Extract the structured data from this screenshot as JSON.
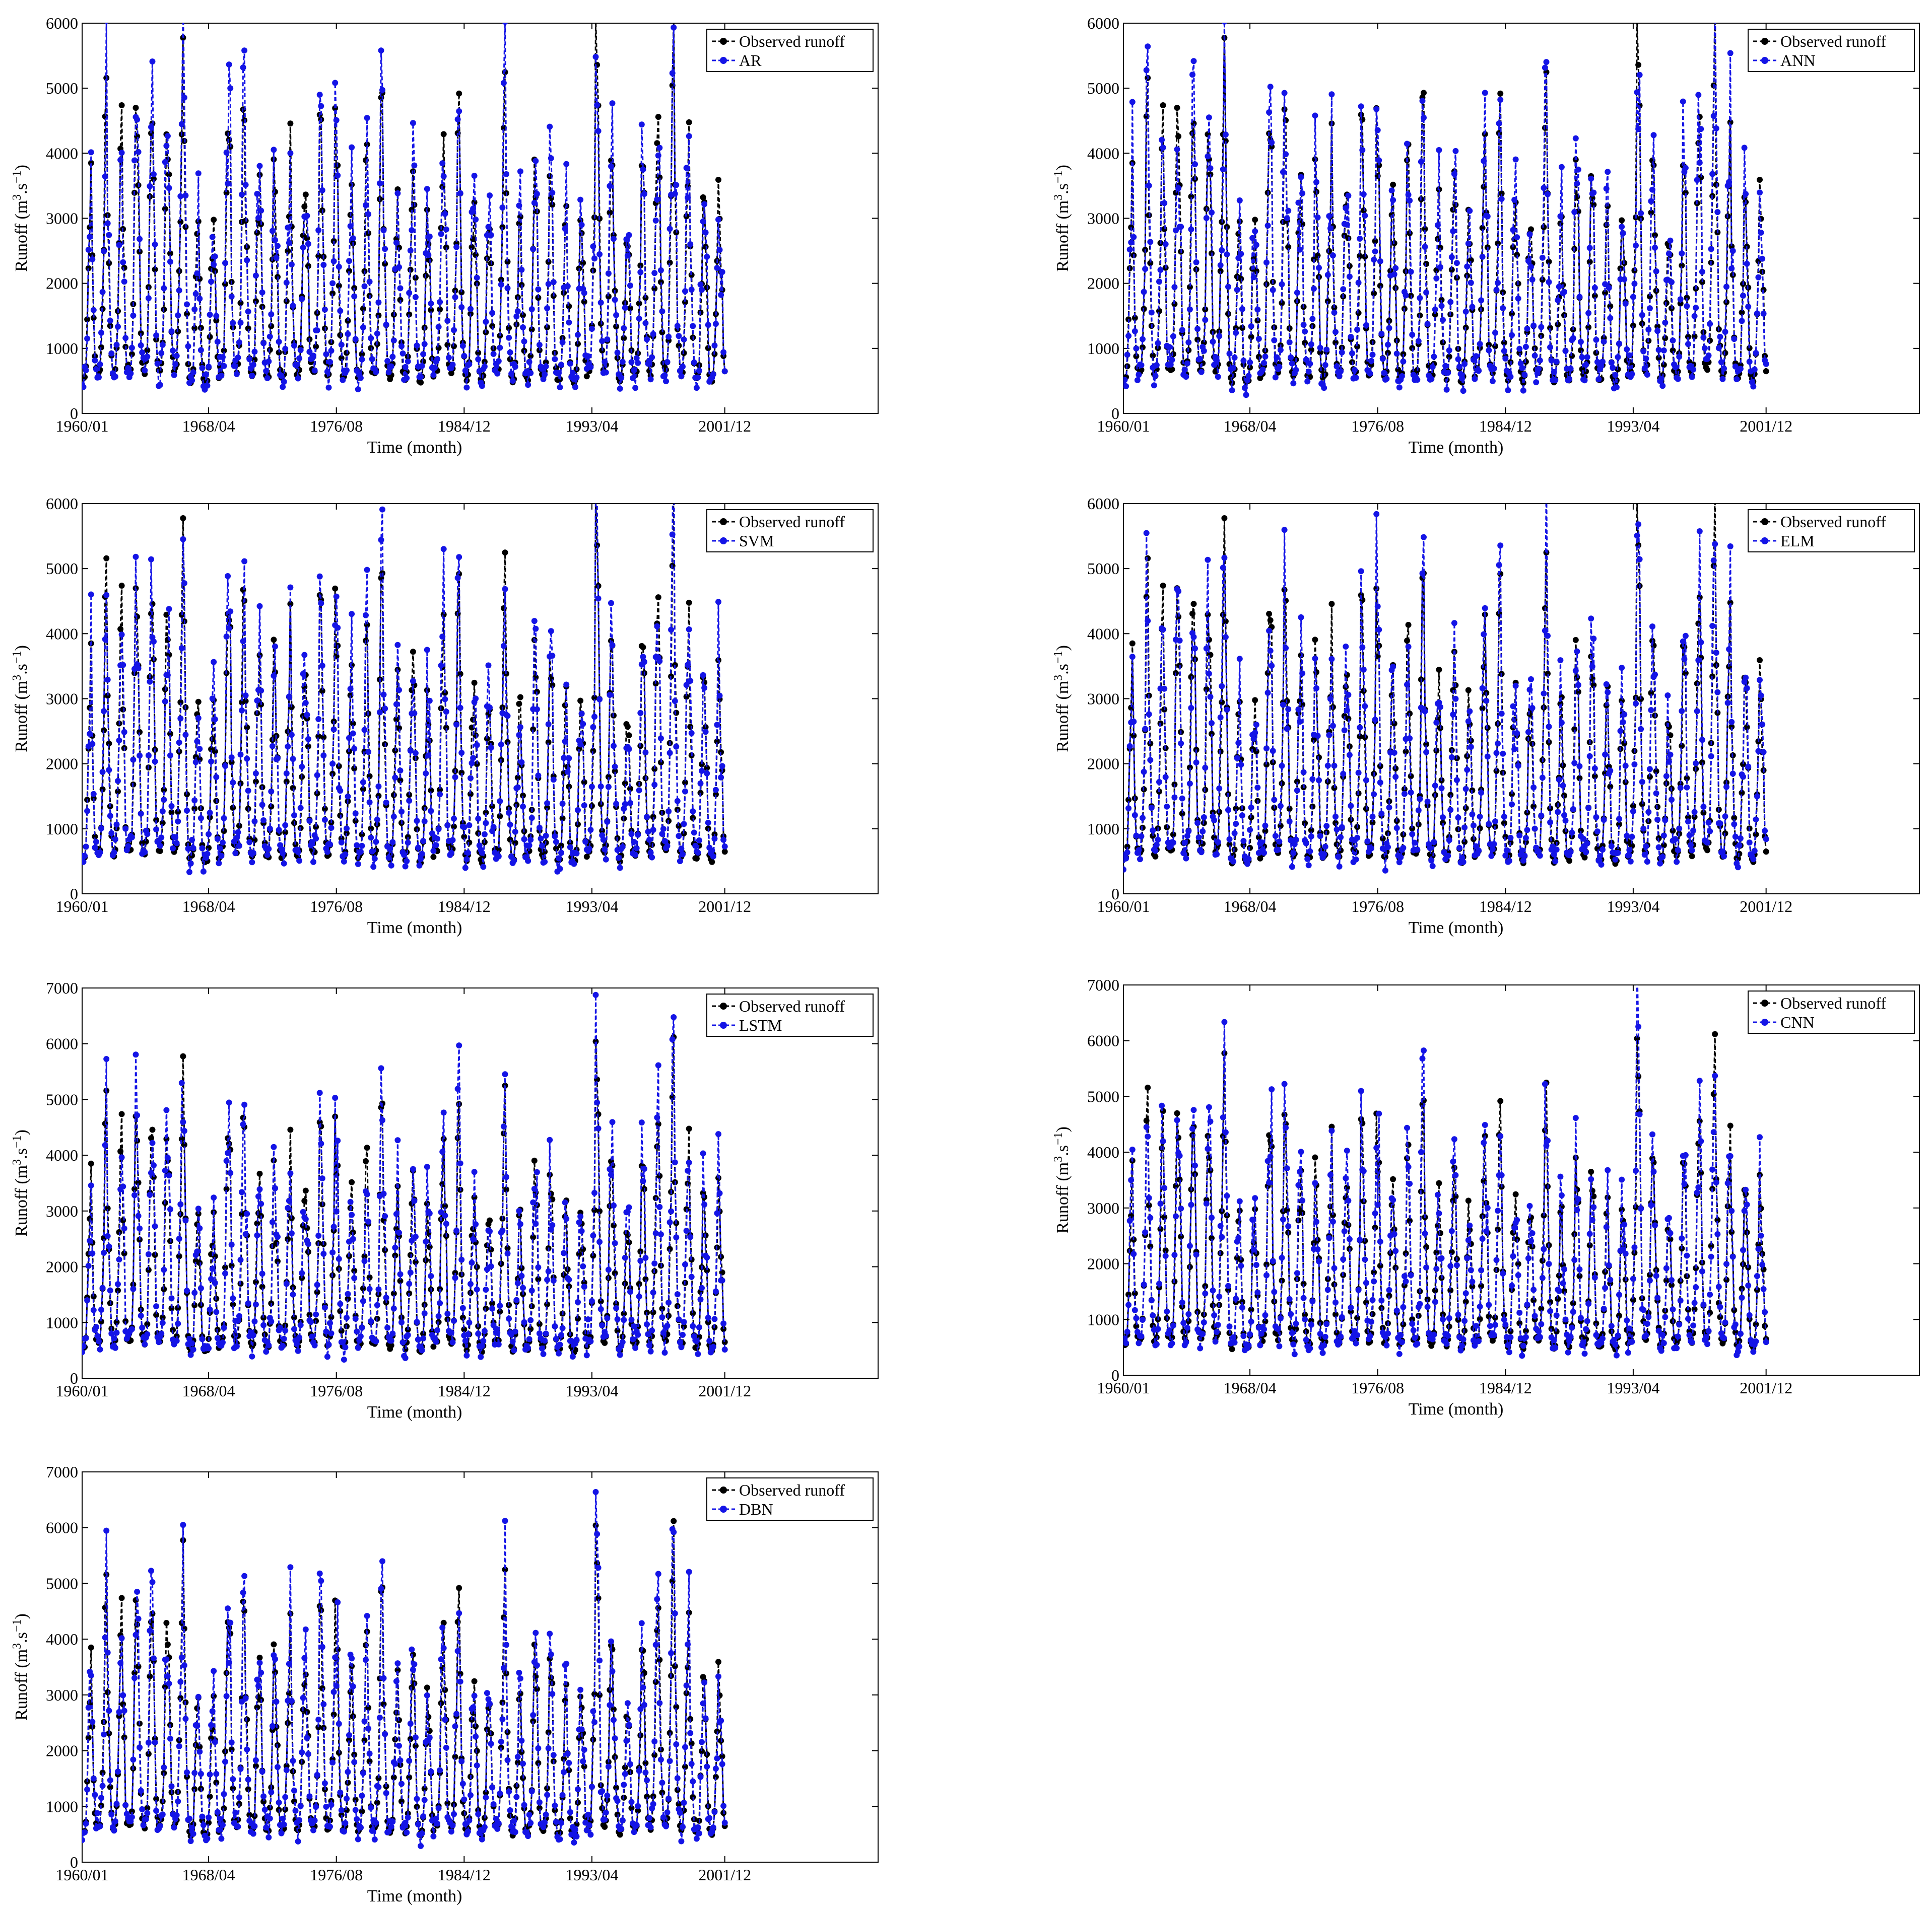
{
  "figure": {
    "panels": 7,
    "layout": "4 rows x 2 columns, last row single panel on the left",
    "colors": {
      "observed": "#000000",
      "model": "#1414e6",
      "axes": "#000000",
      "background": "#ffffff"
    },
    "line_style": "dashed with filled circle markers"
  },
  "chart_data": [
    {
      "type": "line",
      "xlabel": "Time (month)",
      "ylabel": "Runoff (m3.s-1)",
      "ylabel_text": "Runoff (m",
      "ylabel_unit_tail": ".s",
      "ylabel_exp1": "3",
      "ylabel_exp2": "−1",
      "ylabel_close": ")",
      "ylim": [
        0,
        6000
      ],
      "yticks": [
        "0",
        "1000",
        "2000",
        "3000",
        "4000",
        "5000",
        "6000"
      ],
      "xlim": [
        "1960/01",
        "2011/12"
      ],
      "xticks": [
        "1960/01",
        "1968/04",
        "1976/08",
        "1984/12",
        "1993/04",
        "2001/12"
      ],
      "legend_position": "top-right",
      "grid": false,
      "series": [
        {
          "name": "Observed runoff",
          "color": "#000000",
          "seed": 7
        },
        {
          "name": "AR",
          "color": "#1414e6",
          "seed": 11
        }
      ]
    },
    {
      "type": "line",
      "xlabel": "Time (month)",
      "ylabel": "Runoff (m3.s-1)",
      "ylabel_text": "Runoff (m",
      "ylabel_unit_tail": ".s",
      "ylabel_exp1": "3",
      "ylabel_exp2": "−1",
      "ylabel_close": ")",
      "ylim": [
        0,
        6000
      ],
      "yticks": [
        "0",
        "1000",
        "2000",
        "3000",
        "4000",
        "5000",
        "6000"
      ],
      "xlim": [
        "1960/01",
        "2011/12"
      ],
      "xticks": [
        "1960/01",
        "1968/04",
        "1976/08",
        "1984/12",
        "1993/04",
        "2001/12"
      ],
      "legend_position": "top-right",
      "grid": false,
      "series": [
        {
          "name": "Observed runoff",
          "color": "#000000",
          "seed": 7
        },
        {
          "name": "ANN",
          "color": "#1414e6",
          "seed": 13
        }
      ]
    },
    {
      "type": "line",
      "xlabel": "Time (month)",
      "ylabel": "Runoff (m3.s-1)",
      "ylabel_text": "Runoff (m",
      "ylabel_unit_tail": ".s",
      "ylabel_exp1": "3",
      "ylabel_exp2": "−1",
      "ylabel_close": ")",
      "ylim": [
        0,
        6000
      ],
      "yticks": [
        "0",
        "1000",
        "2000",
        "3000",
        "4000",
        "5000",
        "6000"
      ],
      "xlim": [
        "1960/01",
        "2011/12"
      ],
      "xticks": [
        "1960/01",
        "1968/04",
        "1976/08",
        "1984/12",
        "1993/04",
        "2001/12"
      ],
      "legend_position": "top-right",
      "grid": false,
      "series": [
        {
          "name": "Observed runoff",
          "color": "#000000",
          "seed": 7
        },
        {
          "name": "SVM",
          "color": "#1414e6",
          "seed": 17
        }
      ]
    },
    {
      "type": "line",
      "xlabel": "Time (month)",
      "ylabel": "Runoff (m3.s-1)",
      "ylabel_text": "Runoff (m",
      "ylabel_unit_tail": ".s",
      "ylabel_exp1": "3",
      "ylabel_exp2": "−1",
      "ylabel_close": ")",
      "ylim": [
        0,
        6000
      ],
      "yticks": [
        "0",
        "1000",
        "2000",
        "3000",
        "4000",
        "5000",
        "6000"
      ],
      "xlim": [
        "1960/01",
        "2011/12"
      ],
      "xticks": [
        "1960/01",
        "1968/04",
        "1976/08",
        "1984/12",
        "1993/04",
        "2001/12"
      ],
      "legend_position": "top-right",
      "grid": false,
      "series": [
        {
          "name": "Observed runoff",
          "color": "#000000",
          "seed": 7
        },
        {
          "name": "ELM",
          "color": "#1414e6",
          "seed": 19
        }
      ]
    },
    {
      "type": "line",
      "xlabel": "Time (month)",
      "ylabel": "Runoff (m3.s-1)",
      "ylabel_text": "Runoff (m",
      "ylabel_unit_tail": ".s",
      "ylabel_exp1": "3",
      "ylabel_exp2": "−1",
      "ylabel_close": ")",
      "ylim": [
        0,
        7000
      ],
      "yticks": [
        "0",
        "1000",
        "2000",
        "3000",
        "4000",
        "5000",
        "6000",
        "7000"
      ],
      "xlim": [
        "1960/01",
        "2011/12"
      ],
      "xticks": [
        "1960/01",
        "1968/04",
        "1976/08",
        "1984/12",
        "1993/04",
        "2001/12"
      ],
      "legend_position": "top-right",
      "grid": false,
      "series": [
        {
          "name": "Observed runoff",
          "color": "#000000",
          "seed": 7
        },
        {
          "name": "LSTM",
          "color": "#1414e6",
          "seed": 23
        }
      ]
    },
    {
      "type": "line",
      "xlabel": "Time (month)",
      "ylabel": "Runoff (m3.s-1)",
      "ylabel_text": "Runoff (m",
      "ylabel_unit_tail": ".s",
      "ylabel_exp1": "3",
      "ylabel_exp2": "−1",
      "ylabel_close": ")",
      "ylim": [
        0,
        7000
      ],
      "yticks": [
        "0",
        "1000",
        "2000",
        "3000",
        "4000",
        "5000",
        "6000",
        "7000"
      ],
      "xlim": [
        "1960/01",
        "2011/12"
      ],
      "xticks": [
        "1960/01",
        "1968/04",
        "1976/08",
        "1984/12",
        "1993/04",
        "2001/12"
      ],
      "legend_position": "top-right",
      "grid": false,
      "series": [
        {
          "name": "Observed runoff",
          "color": "#000000",
          "seed": 7
        },
        {
          "name": "CNN",
          "color": "#1414e6",
          "seed": 29
        }
      ]
    },
    {
      "type": "line",
      "xlabel": "Time (month)",
      "ylabel": "Runoff (m3.s-1)",
      "ylabel_text": "Runoff (m",
      "ylabel_unit_tail": ".s",
      "ylabel_exp1": "3",
      "ylabel_exp2": "−1",
      "ylabel_close": ")",
      "ylim": [
        0,
        7000
      ],
      "yticks": [
        "0",
        "1000",
        "2000",
        "3000",
        "4000",
        "5000",
        "6000",
        "7000"
      ],
      "xlim": [
        "1960/01",
        "2011/12"
      ],
      "xticks": [
        "1960/01",
        "1968/04",
        "1976/08",
        "1984/12",
        "1993/04",
        "2001/12"
      ],
      "legend_position": "top-right",
      "grid": false,
      "series": [
        {
          "name": "Observed runoff",
          "color": "#000000",
          "seed": 7
        },
        {
          "name": "DBN",
          "color": "#1414e6",
          "seed": 31
        }
      ]
    }
  ]
}
